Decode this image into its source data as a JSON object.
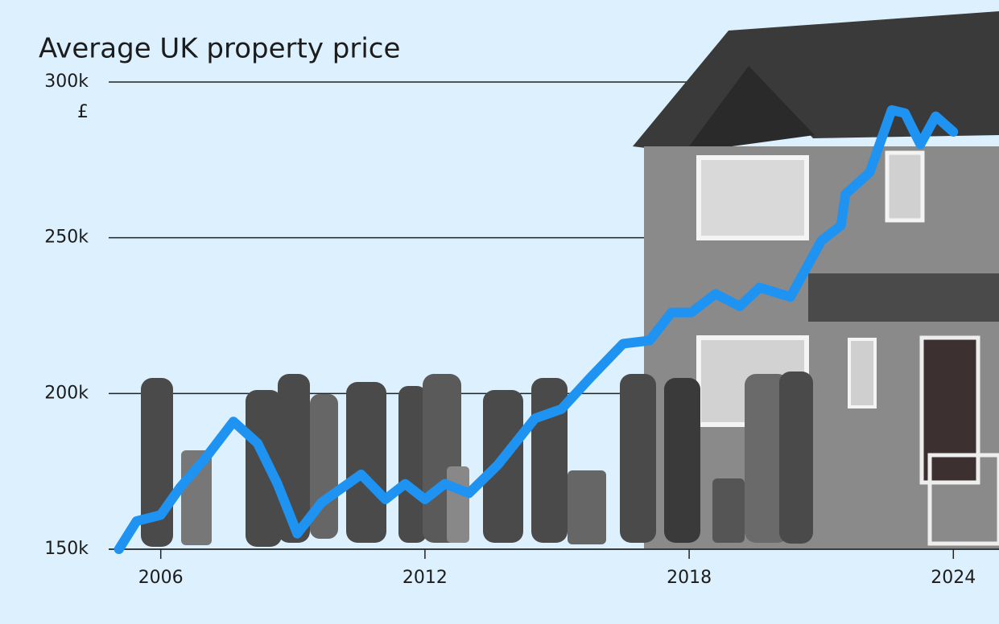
{
  "chart_data": {
    "type": "line",
    "title": "Average UK property price",
    "y_unit": "£",
    "x": [
      2005.05,
      2005.45,
      2006.0,
      2006.45,
      2007.0,
      2007.65,
      2008.2,
      2008.65,
      2009.1,
      2009.65,
      2010.55,
      2011.1,
      2011.55,
      2012.0,
      2012.45,
      2013.0,
      2013.65,
      2014.5,
      2015.1,
      2015.75,
      2016.5,
      2017.1,
      2017.6,
      2018.05,
      2018.6,
      2019.15,
      2019.6,
      2020.3,
      2021.0,
      2021.45,
      2021.55,
      2022.1,
      2022.6,
      2022.9,
      2023.25,
      2023.6,
      2024.0
    ],
    "values": [
      150000,
      159000,
      161000,
      170000,
      179000,
      191000,
      184000,
      171000,
      155000,
      165000,
      174000,
      166000,
      171000,
      166000,
      171000,
      168000,
      177000,
      192000,
      195000,
      205000,
      216000,
      217000,
      226000,
      226000,
      232000,
      228000,
      234000,
      231000,
      249000,
      254000,
      264000,
      271000,
      291000,
      290000,
      280000,
      289000,
      284000
    ],
    "color": "#1f93f2",
    "xlim": [
      2005,
      2025
    ],
    "xticks": [
      2006,
      2012,
      2018,
      2024
    ],
    "ylim": [
      150000,
      300000
    ],
    "yticks": [
      {
        "value": 150000,
        "label": "150k"
      },
      {
        "value": 200000,
        "label": "200k"
      },
      {
        "value": 250000,
        "label": "250k"
      },
      {
        "value": 300000,
        "label": "300k"
      }
    ],
    "grid": true
  }
}
